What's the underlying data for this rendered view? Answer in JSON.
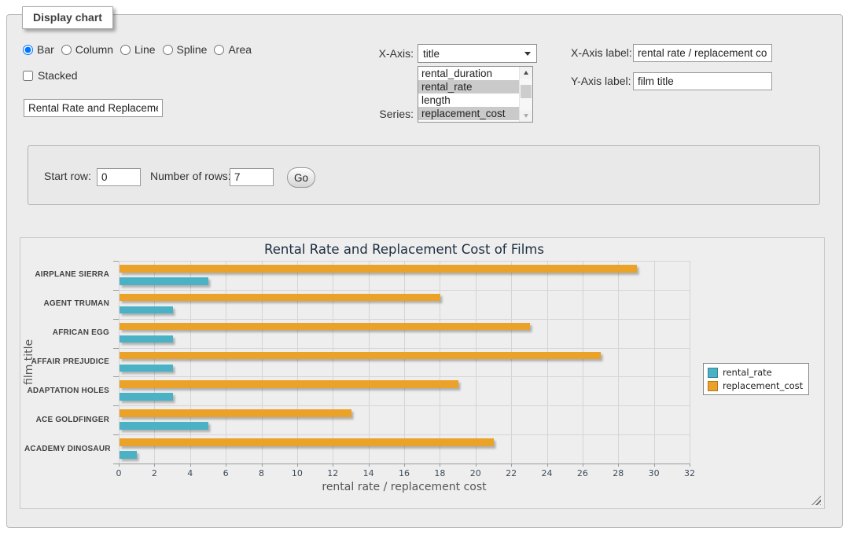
{
  "fieldset": {
    "legend": "Display chart"
  },
  "chart_type": {
    "options": [
      {
        "label": "Bar",
        "selected": true
      },
      {
        "label": "Column",
        "selected": false
      },
      {
        "label": "Line",
        "selected": false
      },
      {
        "label": "Spline",
        "selected": false
      },
      {
        "label": "Area",
        "selected": false
      }
    ]
  },
  "stacked": {
    "label": "Stacked",
    "checked": false
  },
  "chart_title_input": {
    "value": "Rental Rate and Replacement Cost of Films"
  },
  "x_axis_select": {
    "label": "X-Axis:",
    "value": "title"
  },
  "series_select": {
    "label": "Series:",
    "options": [
      {
        "label": "rental_duration",
        "selected": false
      },
      {
        "label": "rental_rate",
        "selected": true
      },
      {
        "label": "length",
        "selected": false
      },
      {
        "label": "replacement_cost",
        "selected": true
      }
    ]
  },
  "x_axis_label_input": {
    "label": "X-Axis label:",
    "value": "rental rate / replacement cost"
  },
  "y_axis_label_input": {
    "label": "Y-Axis label:",
    "value": "film title"
  },
  "rows_form": {
    "start_row_label": "Start row:",
    "start_row_value": "0",
    "number_of_rows_label": "Number of rows:",
    "number_of_rows_value": "7",
    "go_button": "Go"
  },
  "chart_data": {
    "type": "bar",
    "title": "Rental Rate and Replacement Cost of Films",
    "categories": [
      "AIRPLANE SIERRA",
      "AGENT TRUMAN",
      "AFRICAN EGG",
      "AFFAIR PREJUDICE",
      "ADAPTATION HOLES",
      "ACE GOLDFINGER",
      "ACADEMY DINOSAUR"
    ],
    "series": [
      {
        "name": "rental_rate",
        "color": "#4bb2c5",
        "values": [
          4.99,
          2.99,
          2.99,
          2.99,
          2.99,
          4.99,
          0.99
        ]
      },
      {
        "name": "replacement_cost",
        "color": "#eaa228",
        "values": [
          28.99,
          17.99,
          22.99,
          26.99,
          18.99,
          12.99,
          20.99
        ]
      }
    ],
    "xlabel": "rental rate / replacement cost",
    "ylabel": "film title",
    "xlim": [
      0,
      32
    ],
    "x_tick_step": 2,
    "grid": true,
    "legend_position": "right"
  }
}
